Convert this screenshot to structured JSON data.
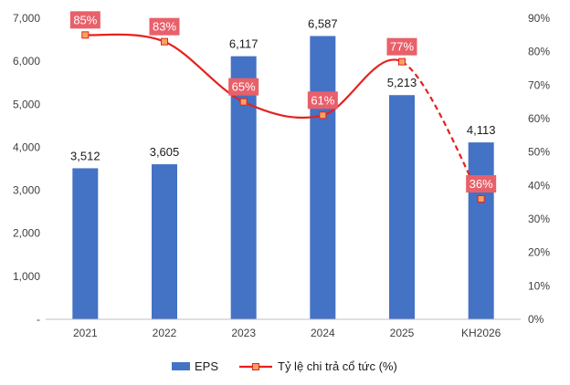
{
  "chart_data": {
    "type": "bar",
    "categories": [
      "2021",
      "2022",
      "2023",
      "2024",
      "2025",
      "KH2026"
    ],
    "series": [
      {
        "name": "EPS",
        "type": "bar",
        "axis": "left",
        "values": [
          3512,
          3605,
          6117,
          6587,
          5213,
          4113
        ],
        "labels": [
          "3,512",
          "3,605",
          "6,117",
          "6,587",
          "5,213",
          "4,113"
        ],
        "color": "#4472C4"
      },
      {
        "name": "Tỷ lệ chi trả cổ tức (%)",
        "type": "line",
        "axis": "right",
        "values": [
          85,
          83,
          65,
          61,
          77,
          36
        ],
        "labels": [
          "85%",
          "83%",
          "65%",
          "61%",
          "77%",
          "36%"
        ],
        "color": "#E8201F",
        "label_bg": "#E8606A",
        "dashed_from_index": 4
      }
    ],
    "y_left": {
      "range": [
        0,
        7000
      ],
      "ticks": [
        0,
        1000,
        2000,
        3000,
        4000,
        5000,
        6000,
        7000
      ],
      "tick_labels": [
        "-",
        "1,000",
        "2,000",
        "3,000",
        "4,000",
        "5,000",
        "6,000",
        "7,000"
      ]
    },
    "y_right": {
      "range": [
        0,
        90
      ],
      "ticks": [
        0,
        10,
        20,
        30,
        40,
        50,
        60,
        70,
        80,
        90
      ],
      "tick_labels": [
        "0%",
        "10%",
        "20%",
        "30%",
        "40%",
        "50%",
        "60%",
        "70%",
        "80%",
        "90%"
      ]
    },
    "grid": false,
    "legend_position": "bottom",
    "title": "",
    "xlabel": "",
    "ylabel": ""
  }
}
